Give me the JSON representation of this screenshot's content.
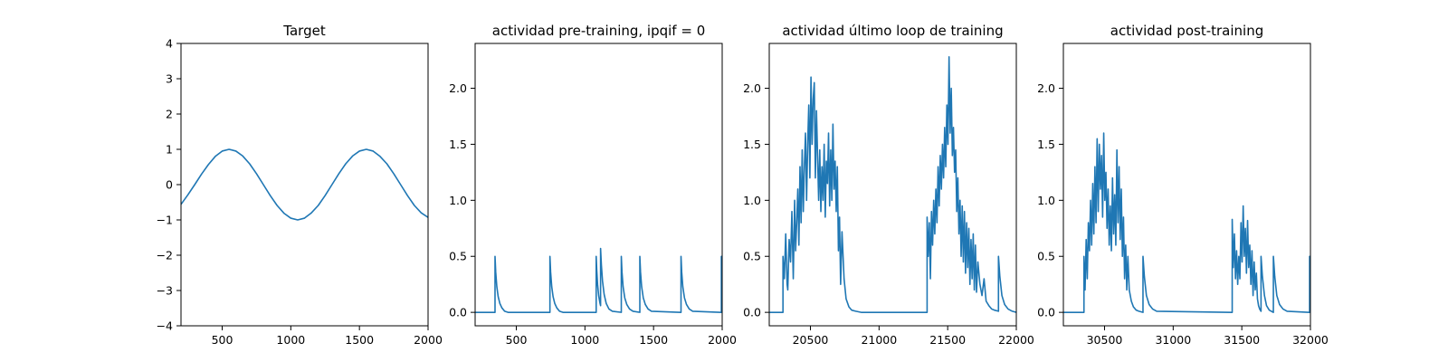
{
  "chart_data": [
    {
      "type": "line",
      "title": "Target",
      "xlabel": "",
      "ylabel": "",
      "xlim": [
        200,
        2000
      ],
      "ylim": [
        -4,
        4
      ],
      "xticks": [
        500,
        1000,
        1500,
        2000
      ],
      "xtick_labels": [
        "500",
        "1000",
        "1500",
        "2000"
      ],
      "yticks": [
        -4,
        -3,
        -2,
        -1,
        0,
        1,
        2,
        3,
        4
      ],
      "ytick_labels": [
        "−4",
        "−3",
        "−2",
        "−1",
        "0",
        "1",
        "2",
        "3",
        "4"
      ],
      "color": "#1f77b4",
      "series": [
        {
          "x": [
            200,
            250,
            300,
            350,
            400,
            450,
            500,
            550,
            600,
            650,
            700,
            750,
            800,
            850,
            900,
            950,
            1000,
            1050,
            1100,
            1150,
            1200,
            1250,
            1300,
            1350,
            1400,
            1450,
            1500,
            1550,
            1600,
            1650,
            1700,
            1750,
            1800,
            1850,
            1900,
            1950,
            2000
          ],
          "y": [
            -0.56,
            -0.29,
            0.0,
            0.3,
            0.57,
            0.8,
            0.95,
            1.0,
            0.95,
            0.81,
            0.59,
            0.31,
            0.0,
            -0.31,
            -0.59,
            -0.81,
            -0.95,
            -1.0,
            -0.95,
            -0.8,
            -0.59,
            -0.31,
            0.0,
            0.31,
            0.59,
            0.81,
            0.95,
            1.0,
            0.95,
            0.8,
            0.59,
            0.31,
            0.0,
            -0.31,
            -0.59,
            -0.8,
            -0.93
          ]
        }
      ]
    },
    {
      "type": "line",
      "title": "actividad pre-training, ipqif = 0",
      "xlabel": "",
      "ylabel": "",
      "xlim": [
        200,
        2000
      ],
      "ylim": [
        -0.12,
        2.4
      ],
      "xticks": [
        500,
        1000,
        1500,
        2000
      ],
      "xtick_labels": [
        "500",
        "1000",
        "1500",
        "2000"
      ],
      "yticks": [
        0.0,
        0.5,
        1.0,
        1.5,
        2.0
      ],
      "ytick_labels": [
        "0.0",
        "0.5",
        "1.0",
        "1.5",
        "2.0"
      ],
      "color": "#1f77b4",
      "series": [
        {
          "x": [
            200,
            345,
            345,
            350,
            358,
            368,
            380,
            395,
            415,
            440,
            745,
            745,
            750,
            758,
            768,
            780,
            795,
            815,
            840,
            1082,
            1082,
            1086,
            1092,
            1100,
            1110,
            1114,
            1114,
            1120,
            1128,
            1140,
            1155,
            1175,
            1200,
            1265,
            1265,
            1270,
            1278,
            1290,
            1305,
            1325,
            1350,
            1400,
            1400,
            1405,
            1413,
            1425,
            1440,
            1460,
            1485,
            1700,
            1700,
            1705,
            1713,
            1725,
            1740,
            1760,
            1785,
            1994,
            1994,
            2000
          ],
          "y": [
            0,
            0,
            0.5,
            0.36,
            0.23,
            0.14,
            0.08,
            0.04,
            0.01,
            0,
            0,
            0.5,
            0.36,
            0.23,
            0.14,
            0.08,
            0.04,
            0.01,
            0,
            0,
            0.5,
            0.38,
            0.25,
            0.15,
            0.08,
            0.06,
            0.57,
            0.42,
            0.28,
            0.16,
            0.08,
            0.03,
            0.01,
            0.0,
            0.5,
            0.36,
            0.23,
            0.13,
            0.07,
            0.03,
            0.01,
            0.0,
            0.5,
            0.36,
            0.23,
            0.13,
            0.07,
            0.03,
            0.01,
            0.0,
            0.5,
            0.36,
            0.23,
            0.13,
            0.07,
            0.03,
            0.01,
            0.0,
            0.5,
            0.25
          ]
        }
      ]
    },
    {
      "type": "line",
      "title": "actividad último loop de training",
      "xlabel": "",
      "ylabel": "",
      "xlim": [
        20200,
        22000
      ],
      "ylim": [
        -0.12,
        2.4
      ],
      "xticks": [
        20500,
        21000,
        21500,
        22000
      ],
      "xtick_labels": [
        "20500",
        "21000",
        "21500",
        "22000"
      ],
      "yticks": [
        0.0,
        0.5,
        1.0,
        1.5,
        2.0
      ],
      "ytick_labels": [
        "0.0",
        "0.5",
        "1.0",
        "1.5",
        "2.0"
      ],
      "color": "#1f77b4",
      "series": [
        {
          "x": [
            20200,
            20300,
            20300,
            20310,
            20320,
            20330,
            20335,
            20345,
            20355,
            20365,
            20375,
            20385,
            20392,
            20400,
            20408,
            20416,
            20424,
            20432,
            20440,
            20448,
            20456,
            20464,
            20472,
            20480,
            20488,
            20496,
            20504,
            20512,
            20520,
            20528,
            20536,
            20544,
            20552,
            20560,
            20568,
            20576,
            20584,
            20592,
            20600,
            20608,
            20616,
            20624,
            20632,
            20640,
            20648,
            20656,
            20664,
            20672,
            20680,
            20688,
            20696,
            20704,
            20712,
            20720,
            20730,
            20745,
            20760,
            20780,
            20800,
            20830,
            20870,
            21350,
            21350,
            21358,
            21366,
            21374,
            21382,
            21390,
            21398,
            21406,
            21414,
            21422,
            21430,
            21438,
            21446,
            21454,
            21462,
            21470,
            21478,
            21486,
            21494,
            21502,
            21510,
            21518,
            21526,
            21534,
            21542,
            21550,
            21558,
            21566,
            21574,
            21582,
            21590,
            21598,
            21606,
            21614,
            21622,
            21630,
            21638,
            21646,
            21654,
            21662,
            21670,
            21678,
            21686,
            21694,
            21702,
            21710,
            21720,
            21735,
            21750,
            21765,
            21780,
            21800,
            21820,
            21840,
            21870,
            21870,
            21880,
            21895,
            21915,
            21940,
            21970,
            22000
          ],
          "y": [
            0,
            0,
            0.5,
            0.3,
            0.7,
            0.25,
            0.2,
            0.65,
            0.45,
            0.9,
            0.3,
            1.0,
            0.55,
            0.8,
            1.1,
            0.6,
            1.3,
            0.8,
            1.45,
            0.9,
            1.3,
            1.6,
            1.0,
            1.5,
            1.85,
            1.2,
            2.1,
            1.5,
            1.9,
            2.05,
            1.2,
            1.8,
            1.4,
            1.0,
            1.45,
            0.9,
            1.3,
            1.0,
            1.5,
            0.85,
            1.35,
            1.15,
            1.6,
            0.95,
            1.45,
            1.0,
            1.68,
            1.1,
            1.35,
            0.9,
            1.3,
            0.55,
            0.85,
            0.25,
            0.72,
            0.3,
            0.12,
            0.05,
            0.02,
            0.01,
            0,
            0,
            0.85,
            0.5,
            0.8,
            0.3,
            0.9,
            0.6,
            1.0,
            0.7,
            1.1,
            0.8,
            1.3,
            0.95,
            1.4,
            1.1,
            1.5,
            1.2,
            1.65,
            1.3,
            1.85,
            1.5,
            2.28,
            1.6,
            2.0,
            1.4,
            1.65,
            1.25,
            1.45,
            0.9,
            1.2,
            0.7,
            1.0,
            0.5,
            0.95,
            0.45,
            0.9,
            0.35,
            0.8,
            0.4,
            0.75,
            0.25,
            0.65,
            0.3,
            0.7,
            0.2,
            0.6,
            0.18,
            0.45,
            0.25,
            0.15,
            0.3,
            0.1,
            0.06,
            0.03,
            0.02,
            0.01,
            0.5,
            0.32,
            0.15,
            0.07,
            0.03,
            0.01,
            0
          ]
        }
      ]
    },
    {
      "type": "line",
      "title": "actividad post-training",
      "xlabel": "",
      "ylabel": "",
      "xlim": [
        30200,
        32000
      ],
      "ylim": [
        -0.12,
        2.4
      ],
      "xticks": [
        30500,
        31000,
        31500,
        32000
      ],
      "xtick_labels": [
        "30500",
        "31000",
        "31500",
        "32000"
      ],
      "yticks": [
        0.0,
        0.5,
        1.0,
        1.5,
        2.0
      ],
      "ytick_labels": [
        "0.0",
        "0.5",
        "1.0",
        "1.5",
        "2.0"
      ],
      "color": "#1f77b4",
      "series": [
        {
          "x": [
            30200,
            30350,
            30350,
            30358,
            30366,
            30374,
            30382,
            30390,
            30398,
            30406,
            30414,
            30422,
            30430,
            30438,
            30446,
            30454,
            30462,
            30470,
            30478,
            30486,
            30494,
            30502,
            30510,
            30518,
            30526,
            30534,
            30542,
            30550,
            30558,
            30566,
            30574,
            30582,
            30590,
            30598,
            30606,
            30614,
            30622,
            30630,
            30638,
            30646,
            30654,
            30662,
            30670,
            30680,
            30695,
            30710,
            30730,
            30750,
            30780,
            30780,
            30790,
            30805,
            30825,
            30850,
            30880,
            31430,
            31430,
            31438,
            31446,
            31454,
            31462,
            31470,
            31478,
            31486,
            31494,
            31502,
            31510,
            31518,
            31526,
            31534,
            31542,
            31550,
            31558,
            31566,
            31574,
            31582,
            31590,
            31598,
            31606,
            31614,
            31622,
            31630,
            31640,
            31640,
            31650,
            31665,
            31680,
            31700,
            31730,
            31730,
            31740,
            31755,
            31775,
            31800,
            31830,
            31994,
            31994,
            32000
          ],
          "y": [
            0,
            0,
            0.5,
            0.2,
            0.65,
            0.3,
            0.8,
            0.55,
            1.0,
            0.6,
            1.15,
            0.7,
            1.3,
            0.8,
            1.55,
            0.9,
            1.5,
            1.1,
            1.4,
            0.85,
            1.6,
            1.0,
            1.25,
            0.75,
            1.1,
            0.6,
            0.95,
            0.55,
            1.2,
            0.7,
            1.05,
            0.6,
            1.45,
            0.8,
            1.3,
            0.65,
            1.1,
            0.5,
            0.85,
            0.3,
            0.6,
            0.2,
            0.5,
            0.2,
            0.1,
            0.05,
            0.02,
            0.01,
            0.0,
            0.5,
            0.32,
            0.15,
            0.07,
            0.03,
            0.01,
            0,
            0.83,
            0.4,
            0.7,
            0.3,
            0.55,
            0.25,
            0.5,
            0.3,
            0.8,
            0.45,
            0.95,
            0.5,
            0.75,
            0.35,
            0.82,
            0.4,
            0.6,
            0.25,
            0.55,
            0.15,
            0.45,
            0.2,
            0.35,
            0.12,
            0.06,
            0.03,
            0.01,
            0.5,
            0.32,
            0.15,
            0.06,
            0.02,
            0.0,
            0.5,
            0.32,
            0.15,
            0.07,
            0.03,
            0.01,
            0.0,
            0.5,
            0.0
          ]
        }
      ]
    }
  ]
}
